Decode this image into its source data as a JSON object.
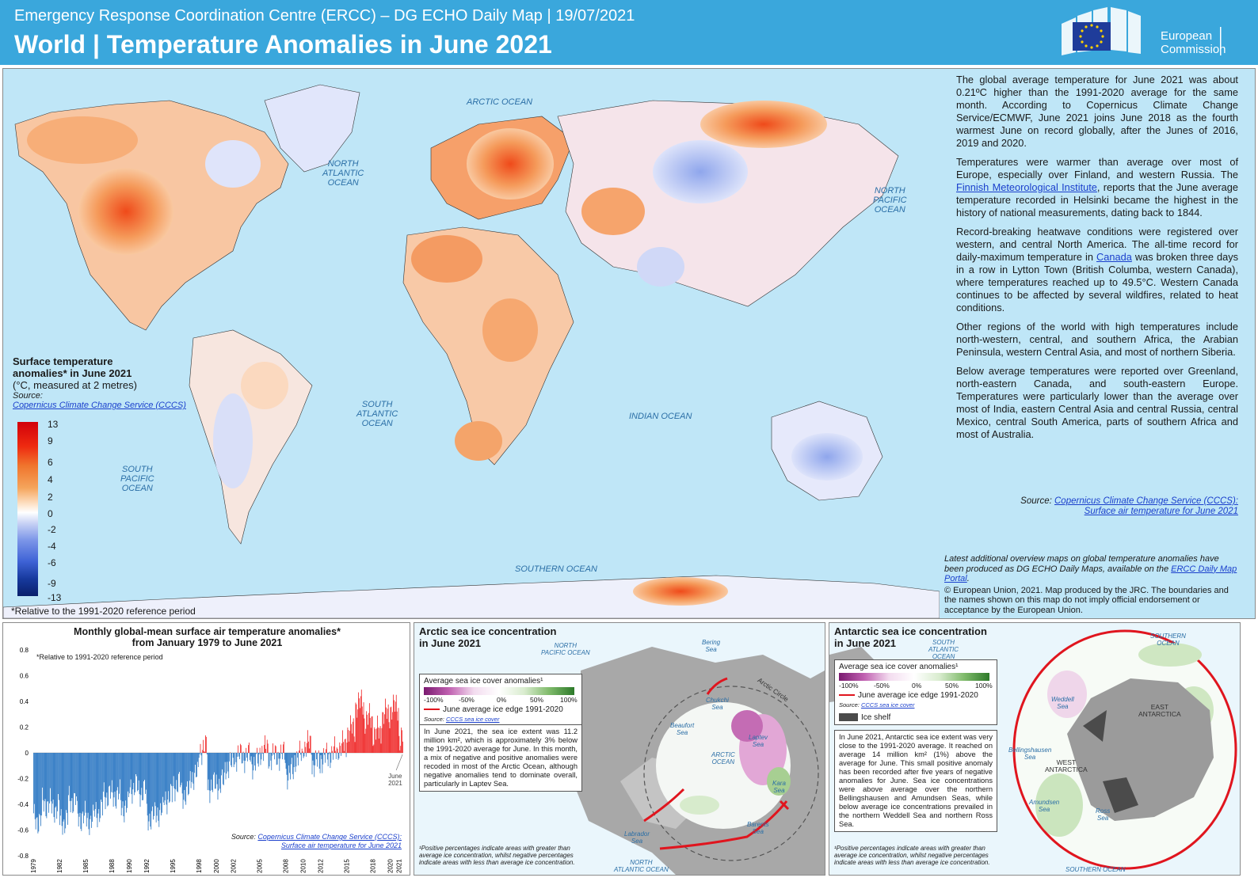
{
  "header": {
    "top_line": "Emergency Response Coordination Centre (ERCC) – DG ECHO Daily Map | 19/07/2021",
    "title": "World | Temperature Anomalies in June 2021",
    "logo_line1": "European",
    "logo_line2": "Commission"
  },
  "map": {
    "ocean_labels": {
      "arctic": "ARCTIC OCEAN",
      "north_atlantic": [
        "NORTH",
        "ATLANTIC",
        "OCEAN"
      ],
      "north_pacific": [
        "NORTH",
        "PACIFIC",
        "OCEAN"
      ],
      "south_atlantic": [
        "SOUTH",
        "ATLANTIC",
        "OCEAN"
      ],
      "south_pacific": [
        "SOUTH",
        "PACIFIC",
        "OCEAN"
      ],
      "indian": "INDIAN OCEAN",
      "southern": "SOUTHERN OCEAN"
    },
    "legend": {
      "title_line1": "Surface temperature",
      "title_line2": "anomalies*  in June 2021",
      "units": "(°C, measured  at 2 metres)",
      "source_label": "Source:",
      "source_link": "Copernicus Climate Change Service (CCCS)",
      "ticks": [
        "13",
        "9",
        "6",
        "4",
        "2",
        "0",
        "-2",
        "-4",
        "-6",
        "-9",
        "-13"
      ]
    },
    "reference_note": "*Relative to the 1991-2020 reference period"
  },
  "info": {
    "p1": "The global average temperature for June 2021 was about 0.21ºC higher than the 1991-2020 average for the same month. According to Copernicus Climate Change Service/ECMWF, June 2021 joins June 2018 as the fourth warmest June on record globally, after the Junes of 2016, 2019 and 2020.",
    "p2_a": "Temperatures were warmer than average over most of Europe, especially over Finland, and western Russia. The ",
    "p2_link": "Finnish Meteorological Institute",
    "p2_b": ", reports that the June average temperature recorded in Helsinki became the highest in the history of national measurements,  dating back to 1844.",
    "p3_a": "Record-breaking heatwave conditions were registered over western, and central North America. The all-time record for daily-maximum temperature in ",
    "p3_link": "Canada",
    "p3_b": " was broken three days in a row in Lytton Town (British Columba, western Canada), where temperatures reached up to 49.5°C. Western Canada continues to be affected by several wildfires, related to heat conditions.",
    "p4": "Other regions of the world with high temperatures include north-western, central, and southern Africa, the Arabian Peninsula, western Central Asia, and most of northern Siberia.",
    "p5": "Below average temperatures were reported over Greenland, north-eastern Canada, and south-eastern Europe. Temperatures were particularly lower than the average over most of India, eastern Central Asia and central Russia, central Mexico, central South America, parts of southern Africa and most of Australia.",
    "source_label": "Source: ",
    "source_link1": "Copernicus Climate Change Service (CCCS):",
    "source_link2": "Surface air temperature for June 2021",
    "footer_a": "Latest additional overview maps on global temperature anomalies have been produced as DG ECHO Daily Maps, available on the ",
    "footer_link": "ERCC Daily Map Portal",
    "footer_b": ".",
    "copyright": "© European Union, 2021. Map produced by the JRC. The boundaries and the names shown on this map do not imply official endorsement or acceptance by the European Union."
  },
  "chart": {
    "title_line1": "Monthly global-mean surface air temperature anomalies*",
    "title_line2": "from January 1979 to June 2021",
    "note": "*Relative to 1991-2020 reference period",
    "annotation_line1": "June",
    "annotation_line2": "2021",
    "source_label": "Source: ",
    "source_link1": "Copernicus Climate Change Service (CCCS):",
    "source_link2": "Surface air temperature for June 2021"
  },
  "chart_data": {
    "type": "bar",
    "title": "Monthly global-mean surface air temperature anomalies* from January 1979 to June 2021",
    "xlabel": "",
    "ylabel": "",
    "ylim": [
      -0.8,
      0.8
    ],
    "yticks": [
      "0.8",
      "0.6",
      "0.4",
      "0.2",
      "0",
      "-0.2",
      "-0.4",
      "-0.6",
      "-0.8"
    ],
    "xticks": [
      "1979",
      "1982",
      "1985",
      "1988",
      "1990",
      "1992",
      "1995",
      "1998",
      "2000",
      "2002",
      "2005",
      "2008",
      "2010",
      "2012",
      "2015",
      "2018",
      "2020",
      "2021"
    ],
    "x_start": "1979-01",
    "x_end": "2021-06",
    "positive_color": "#ee1c1c",
    "negative_color": "#1f6fbf",
    "annual_values": [
      {
        "year": 1979,
        "value": -0.52
      },
      {
        "year": 1980,
        "value": -0.4
      },
      {
        "year": 1981,
        "value": -0.43
      },
      {
        "year": 1982,
        "value": -0.53
      },
      {
        "year": 1983,
        "value": -0.37
      },
      {
        "year": 1984,
        "value": -0.5
      },
      {
        "year": 1985,
        "value": -0.52
      },
      {
        "year": 1986,
        "value": -0.46
      },
      {
        "year": 1987,
        "value": -0.33
      },
      {
        "year": 1988,
        "value": -0.33
      },
      {
        "year": 1989,
        "value": -0.42
      },
      {
        "year": 1990,
        "value": -0.27
      },
      {
        "year": 1991,
        "value": -0.3
      },
      {
        "year": 1992,
        "value": -0.5
      },
      {
        "year": 1993,
        "value": -0.46
      },
      {
        "year": 1994,
        "value": -0.35
      },
      {
        "year": 1995,
        "value": -0.25
      },
      {
        "year": 1996,
        "value": -0.32
      },
      {
        "year": 1997,
        "value": -0.18
      },
      {
        "year": 1998,
        "value": 0.03
      },
      {
        "year": 1999,
        "value": -0.26
      },
      {
        "year": 2000,
        "value": -0.24
      },
      {
        "year": 2001,
        "value": -0.1
      },
      {
        "year": 2002,
        "value": -0.03
      },
      {
        "year": 2003,
        "value": -0.03
      },
      {
        "year": 2004,
        "value": -0.08
      },
      {
        "year": 2005,
        "value": 0.02
      },
      {
        "year": 2006,
        "value": -0.03
      },
      {
        "year": 2007,
        "value": -0.02
      },
      {
        "year": 2008,
        "value": -0.16
      },
      {
        "year": 2009,
        "value": -0.03
      },
      {
        "year": 2010,
        "value": 0.06
      },
      {
        "year": 2011,
        "value": -0.08
      },
      {
        "year": 2012,
        "value": -0.04
      },
      {
        "year": 2013,
        "value": 0.0
      },
      {
        "year": 2014,
        "value": 0.05
      },
      {
        "year": 2015,
        "value": 0.18
      },
      {
        "year": 2016,
        "value": 0.38
      },
      {
        "year": 2017,
        "value": 0.26
      },
      {
        "year": 2018,
        "value": 0.16
      },
      {
        "year": 2019,
        "value": 0.3
      },
      {
        "year": 2020,
        "value": 0.35
      },
      {
        "year": 2021,
        "value": 0.12
      }
    ]
  },
  "arctic": {
    "title_line1": "Arctic sea ice concentration",
    "title_line2": "in June 2021",
    "legend_title": "Average sea ice cover anomalies¹",
    "legend_ticks": [
      "-100%",
      "-50%",
      "0%",
      "50%",
      "100%"
    ],
    "edge_label": "June average ice edge 1991-2020",
    "source_label": "Source: ",
    "source_link": "CCCS sea ice cover",
    "text": "In June 2021, the sea ice extent was 11.2 million km², which is approximately 3% below the 1991-2020 average for June. In this month, a mix of negative and positive anomalies were recoded in most of the Arctic Ocean, although negative anomalies tend to dominate overall, particularly in Laptev Sea.",
    "footnote": "¹Positive percentages indicate areas with greater than average ice concentration, whilst negative percentages indicate areas with less than average ice concentration.",
    "labels": {
      "north_pacific": [
        "NORTH",
        "PACIFIC OCEAN"
      ],
      "bering": [
        "Bering",
        "Sea"
      ],
      "chukchi": [
        "Chukchi",
        "Sea"
      ],
      "beaufort": [
        "Beaufort",
        "Sea"
      ],
      "arctic_ocean": [
        "ARCTIC",
        "OCEAN"
      ],
      "laptev": [
        "Laptev",
        "Sea"
      ],
      "kara": [
        "Kara",
        "Sea"
      ],
      "barents": [
        "Barents",
        "Sea"
      ],
      "labrador": [
        "Labrador",
        "Sea"
      ],
      "north_atlantic": [
        "NORTH",
        "ATLANTIC OCEAN"
      ],
      "arctic_circle": "Arctic Circle"
    }
  },
  "antarctic": {
    "title_line1": "Antarctic sea ice concentration",
    "title_line2": "in June 2021",
    "legend_title": "Average sea ice cover anomalies¹",
    "legend_ticks": [
      "-100%",
      "-50%",
      "0%",
      "50%",
      "100%"
    ],
    "edge_label": "June average ice edge 1991-2020",
    "source_label": "Source: ",
    "source_link": "CCCS sea ice cover",
    "ice_shelf": "Ice shelf",
    "text": "In June 2021, Antarctic sea ice extent was very close to the 1991-2020 average. It reached on average 14 million km² (1%) above the average for June. This small positive anomaly has been recorded after five years of negative anomalies for June. Sea ice concentrations were above average over the northern Bellingshausen and Amundsen Seas, while below average ice concentrations prevailed in the northern Weddell Sea and northern Ross Sea.",
    "footnote": "¹Positive percentages indicate areas with greater than average ice concentration, whilst negative percentages indicate areas with less than average ice concentration.",
    "labels": {
      "south_atlantic": [
        "SOUTH",
        "ATLANTIC",
        "OCEAN"
      ],
      "southern_ocean_top": [
        "SOUTHERN",
        "OCEAN"
      ],
      "weddell": [
        "Weddell",
        "Sea"
      ],
      "east_antarctica": [
        "EAST",
        "ANTARCTICA"
      ],
      "bellingshausen": [
        "Bellingshausen",
        "Sea"
      ],
      "west_antarctica": [
        "WEST",
        "ANTARCTICA"
      ],
      "amundsen": [
        "Amundsen",
        "Sea"
      ],
      "ross": [
        "Ross",
        "Sea"
      ],
      "southern_ocean_bottom": "SOUTHERN OCEAN"
    }
  }
}
